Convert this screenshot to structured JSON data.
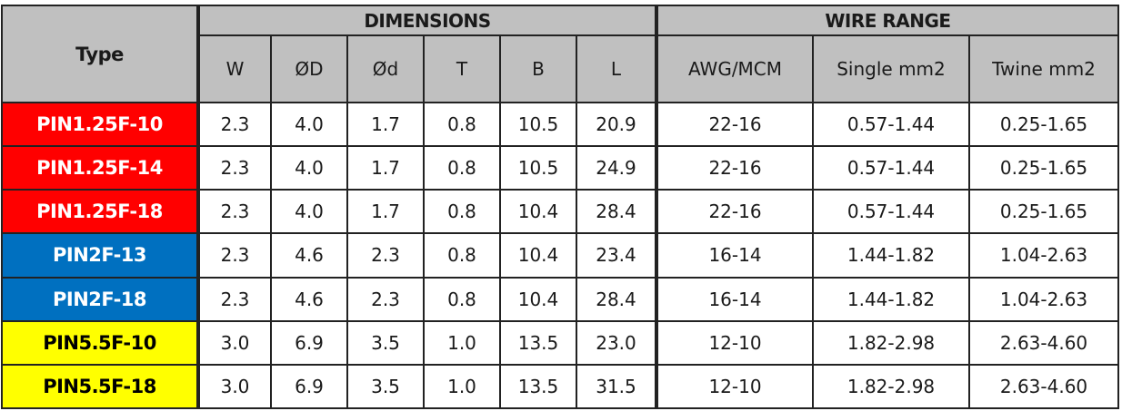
{
  "table": {
    "type_header": "Type",
    "groups": {
      "dimensions": "DIMENSIONS",
      "wire_range": "WIRE RANGE"
    },
    "columns": [
      "W",
      "ØD",
      "Ød",
      "T",
      "B",
      "L",
      "AWG/MCM",
      "Single mm2",
      "Twine mm2"
    ],
    "rows": [
      {
        "type": "PIN1.25F-10",
        "color": "#ff0000",
        "values": [
          "2.3",
          "4.0",
          "1.7",
          "0.8",
          "10.5",
          "20.9",
          "22-16",
          "0.57-1.44",
          "0.25-1.65"
        ]
      },
      {
        "type": "PIN1.25F-14",
        "color": "#ff0000",
        "values": [
          "2.3",
          "4.0",
          "1.7",
          "0.8",
          "10.5",
          "24.9",
          "22-16",
          "0.57-1.44",
          "0.25-1.65"
        ]
      },
      {
        "type": "PIN1.25F-18",
        "color": "#ff0000",
        "values": [
          "2.3",
          "4.0",
          "1.7",
          "0.8",
          "10.4",
          "28.4",
          "22-16",
          "0.57-1.44",
          "0.25-1.65"
        ]
      },
      {
        "type": "PIN2F-13",
        "color": "#0070c0",
        "values": [
          "2.3",
          "4.6",
          "2.3",
          "0.8",
          "10.4",
          "23.4",
          "16-14",
          "1.44-1.82",
          "1.04-2.63"
        ]
      },
      {
        "type": "PIN2F-18",
        "color": "#0070c0",
        "values": [
          "2.3",
          "4.6",
          "2.3",
          "0.8",
          "10.4",
          "28.4",
          "16-14",
          "1.44-1.82",
          "1.04-2.63"
        ]
      },
      {
        "type": "PIN5.5F-10",
        "color": "#ffff00",
        "values": [
          "3.0",
          "6.9",
          "3.5",
          "1.0",
          "13.5",
          "23.0",
          "12-10",
          "1.82-2.98",
          "2.63-4.60"
        ]
      },
      {
        "type": "PIN5.5F-18",
        "color": "#ffff00",
        "values": [
          "3.0",
          "6.9",
          "3.5",
          "1.0",
          "13.5",
          "31.5",
          "12-10",
          "1.82-2.98",
          "2.63-4.60"
        ]
      }
    ]
  }
}
